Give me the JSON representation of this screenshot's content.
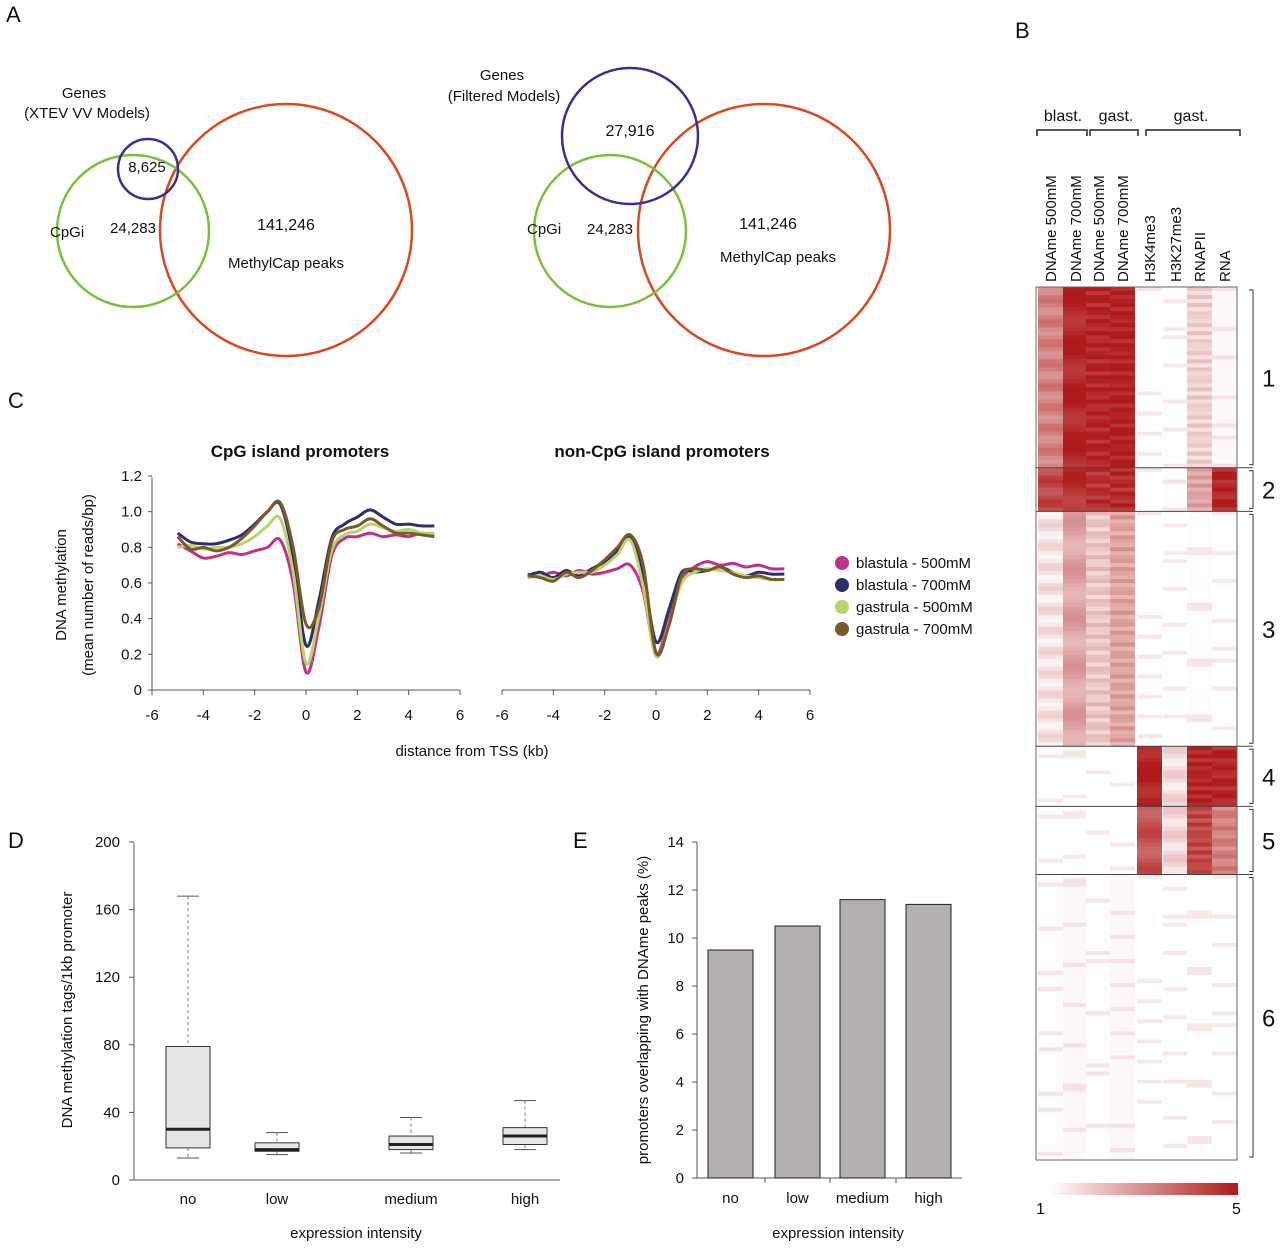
{
  "panel_labels": {
    "a": "A",
    "b": "B",
    "c": "C",
    "d": "D",
    "e": "E"
  },
  "venn_left": {
    "genes_label_1": "Genes",
    "genes_label_2": "(XTEV VV Models)",
    "genes_count": "8,625",
    "cpgi_label": "CpGi",
    "cpgi_count": "24,283",
    "peaks_count": "141,246",
    "peaks_label": "MethylCap peaks"
  },
  "venn_right": {
    "genes_label_1": "Genes",
    "genes_label_2": "(Filtered Models)",
    "genes_count": "27,916",
    "cpgi_label": "CpGi",
    "cpgi_count": "24,283",
    "peaks_count": "141,246",
    "peaks_label": "MethylCap peaks"
  },
  "colors": {
    "genes": "#3a2f8c",
    "cpgi": "#7cbf3c",
    "peaks": "#d9481f",
    "heat_high": "#b01a1a",
    "heat_low": "#ffffff"
  },
  "heatmap": {
    "groups": [
      "blast.",
      "gast.",
      "gast."
    ],
    "columns": [
      "DNAme 500mM",
      "DNAme 700mM",
      "DNAme  500mM",
      "DNAme 700mM",
      "H3K4me3",
      "H3K27me3",
      "RNAPII",
      "RNA"
    ],
    "clusters": [
      "1",
      "2",
      "3",
      "4",
      "5",
      "6"
    ],
    "cluster_fractions": [
      0.207,
      0.05,
      0.269,
      0.069,
      0.078,
      0.327
    ],
    "intensity": [
      [
        3.2,
        4.8,
        4.8,
        4.9,
        1.0,
        1.0,
        1.8,
        1.1
      ],
      [
        4.2,
        4.6,
        4.6,
        4.7,
        1.0,
        1.05,
        2.6,
        4.8
      ],
      [
        1.5,
        2.6,
        2.0,
        2.6,
        1.0,
        1.0,
        1.05,
        1.0
      ],
      [
        1.0,
        1.0,
        1.0,
        1.0,
        4.9,
        1.6,
        4.8,
        4.8
      ],
      [
        1.0,
        1.0,
        1.0,
        1.0,
        4.0,
        1.7,
        4.2,
        3.2
      ],
      [
        1.05,
        1.1,
        1.05,
        1.1,
        1.0,
        1.0,
        1.02,
        1.0
      ]
    ],
    "scale_min": "1",
    "scale_max": "5"
  },
  "chart_data": [
    {
      "type": "line",
      "title": "CpG island promoters",
      "xlabel": "distance from TSS (kb)",
      "ylabel": "DNA methylation (mean number of reads/bp)",
      "xlim": [
        -6,
        6
      ],
      "ylim": [
        0,
        1.2
      ],
      "xticks": [
        "-6",
        "-4",
        "-2",
        "0",
        "2",
        "4",
        "6"
      ],
      "yticks": [
        "0",
        "0.2",
        "0.4",
        "0.6",
        "0.8",
        "1.0",
        "1.2"
      ],
      "x": [
        -5,
        -4.5,
        -4,
        -3.5,
        -3,
        -2.5,
        -2,
        -1.5,
        -1,
        -0.5,
        0,
        0.5,
        1,
        1.5,
        2,
        2.5,
        3,
        3.5,
        4,
        4.5,
        5
      ],
      "series": [
        {
          "name": "blastula - 500mM",
          "color": "#c2308a",
          "values": [
            0.82,
            0.78,
            0.74,
            0.75,
            0.77,
            0.76,
            0.78,
            0.8,
            0.84,
            0.6,
            0.1,
            0.35,
            0.75,
            0.85,
            0.86,
            0.88,
            0.86,
            0.87,
            0.86,
            0.88,
            0.86
          ]
        },
        {
          "name": "blastula - 700mM",
          "color": "#2e2e6e",
          "values": [
            0.88,
            0.83,
            0.82,
            0.82,
            0.84,
            0.87,
            0.93,
            1.0,
            1.04,
            0.75,
            0.25,
            0.5,
            0.85,
            0.93,
            0.97,
            1.01,
            0.97,
            0.93,
            0.93,
            0.92,
            0.92
          ]
        },
        {
          "name": "gastrula - 500mM",
          "color": "#b5d56a",
          "values": [
            0.8,
            0.81,
            0.79,
            0.8,
            0.8,
            0.82,
            0.86,
            0.92,
            0.96,
            0.66,
            0.15,
            0.41,
            0.78,
            0.87,
            0.89,
            0.93,
            0.91,
            0.89,
            0.9,
            0.88,
            0.88
          ]
        },
        {
          "name": "gastrula - 700mM",
          "color": "#7a5a2a",
          "values": [
            0.86,
            0.79,
            0.8,
            0.78,
            0.8,
            0.85,
            0.92,
            1.0,
            1.05,
            0.8,
            0.37,
            0.46,
            0.83,
            0.9,
            0.92,
            0.96,
            0.92,
            0.88,
            0.88,
            0.87,
            0.86
          ]
        }
      ]
    },
    {
      "type": "line",
      "title": "non-CpG island promoters",
      "xlabel": "distance from TSS (kb)",
      "xlim": [
        -6,
        6
      ],
      "ylim": [
        0,
        1.2
      ],
      "xticks": [
        "-6",
        "-4",
        "-2",
        "0",
        "2",
        "4",
        "6"
      ],
      "x": [
        -5,
        -4.5,
        -4,
        -3.5,
        -3,
        -2.5,
        -2,
        -1.5,
        -1,
        -0.5,
        0,
        0.5,
        1,
        1.5,
        2,
        2.5,
        3,
        3.5,
        4,
        4.5,
        5
      ],
      "series": [
        {
          "name": "blastula - 500mM",
          "values": [
            0.65,
            0.64,
            0.66,
            0.64,
            0.67,
            0.65,
            0.66,
            0.68,
            0.7,
            0.55,
            0.2,
            0.4,
            0.62,
            0.69,
            0.72,
            0.7,
            0.71,
            0.69,
            0.7,
            0.68,
            0.68
          ]
        },
        {
          "name": "blastula - 700mM",
          "values": [
            0.64,
            0.66,
            0.63,
            0.67,
            0.64,
            0.68,
            0.72,
            0.78,
            0.86,
            0.65,
            0.27,
            0.45,
            0.66,
            0.66,
            0.67,
            0.69,
            0.66,
            0.64,
            0.66,
            0.65,
            0.65
          ]
        },
        {
          "name": "gastrula - 500mM",
          "values": [
            0.63,
            0.64,
            0.62,
            0.65,
            0.66,
            0.66,
            0.7,
            0.76,
            0.84,
            0.58,
            0.19,
            0.37,
            0.6,
            0.66,
            0.68,
            0.67,
            0.66,
            0.64,
            0.63,
            0.62,
            0.62
          ]
        },
        {
          "name": "gastrula - 700mM",
          "values": [
            0.64,
            0.63,
            0.61,
            0.66,
            0.63,
            0.67,
            0.73,
            0.8,
            0.87,
            0.7,
            0.21,
            0.36,
            0.64,
            0.68,
            0.67,
            0.69,
            0.65,
            0.63,
            0.64,
            0.62,
            0.62
          ]
        }
      ]
    },
    {
      "type": "box",
      "xlabel": "expression intensity",
      "ylabel": "DNA methylation tags/1kb promoter",
      "ylim": [
        0,
        200
      ],
      "yticks": [
        "0",
        "40",
        "80",
        "120",
        "160",
        "200"
      ],
      "categories": [
        "no",
        "low",
        "medium",
        "high"
      ],
      "boxes": [
        {
          "whisker_low": 13,
          "q1": 19,
          "median": 30,
          "q3": 79,
          "whisker_high": 168
        },
        {
          "whisker_low": 15,
          "q1": 17,
          "median": 18,
          "q3": 22,
          "whisker_high": 28
        },
        {
          "whisker_low": 16,
          "q1": 18,
          "median": 21,
          "q3": 26,
          "whisker_high": 37
        },
        {
          "whisker_low": 18,
          "q1": 21,
          "median": 26,
          "q3": 31,
          "whisker_high": 47
        }
      ]
    },
    {
      "type": "bar",
      "xlabel": "expression intensity",
      "ylabel": "promoters overlapping with DNAme peaks (%)",
      "ylim": [
        0,
        14
      ],
      "yticks": [
        "0",
        "2",
        "4",
        "6",
        "8",
        "10",
        "12",
        "14"
      ],
      "categories": [
        "no",
        "low",
        "medium",
        "high"
      ],
      "values": [
        9.5,
        10.5,
        11.6,
        11.4
      ]
    }
  ]
}
